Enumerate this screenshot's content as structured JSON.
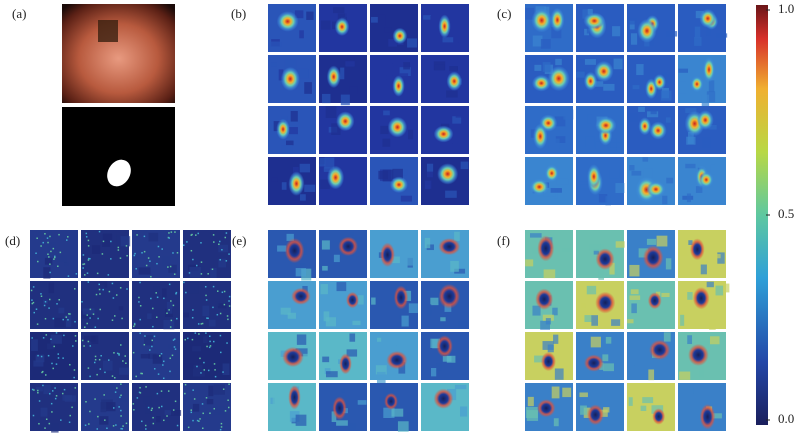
{
  "panels": [
    {
      "label": "(a)"
    },
    {
      "label": "(b)"
    },
    {
      "label": "(c)"
    },
    {
      "label": "(d)"
    },
    {
      "label": "(e)"
    },
    {
      "label": "(f)"
    }
  ],
  "colorbar": {
    "ticks": [
      {
        "value": 1,
        "label": "1.0"
      },
      {
        "value": 0.5,
        "label": "0.5"
      },
      {
        "value": 0,
        "label": "0.0"
      }
    ],
    "range": [
      0,
      1
    ]
  }
}
